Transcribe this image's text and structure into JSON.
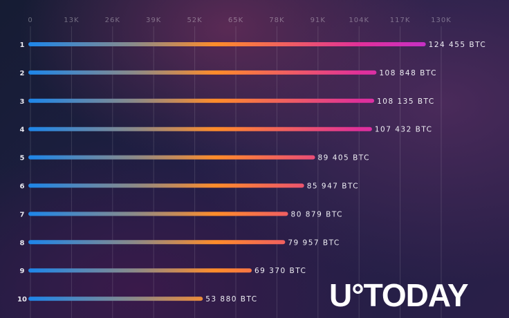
{
  "chart_data": {
    "type": "bar",
    "orientation": "horizontal",
    "categories": [
      "1",
      "2",
      "3",
      "4",
      "5",
      "6",
      "7",
      "8",
      "9",
      "10"
    ],
    "values": [
      124455,
      108848,
      108135,
      107432,
      89405,
      85947,
      80879,
      79957,
      69370,
      53880
    ],
    "labels": [
      "124 455 BTC",
      "108 848 BTC",
      "108 135 BTC",
      "107 432 BTC",
      "89 405 BTC",
      "85 947 BTC",
      "80 879 BTC",
      "79 957 BTC",
      "69 370 BTC",
      "53 880 BTC"
    ],
    "x_ticks": [
      "0",
      "13K",
      "26K",
      "39K",
      "52K",
      "65K",
      "78K",
      "91K",
      "104K",
      "117K",
      "130K"
    ],
    "xlim": [
      0,
      130000
    ],
    "grid": true,
    "gradient_colors": [
      "#1f86e8",
      "#8a8a8a",
      "#ff8c2a",
      "#e0309a",
      "#c030d0"
    ]
  },
  "logo": {
    "text": "U°TODAY"
  }
}
